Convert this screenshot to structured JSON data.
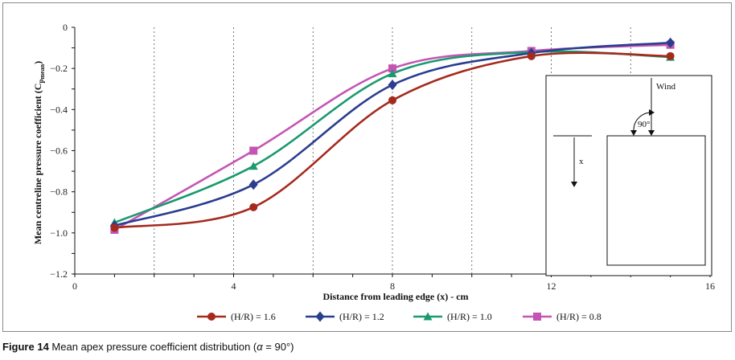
{
  "chart_data": {
    "type": "line",
    "title": "",
    "xlabel": "Distance from leading edge (x) - cm",
    "ylabel": "Mean centreline pressure coefficient (Cp_mean)",
    "ylabel_main": "Mean centreline pressure coefficient (C",
    "ylabel_sub_p": "p",
    "ylabel_sub_mean": "mean",
    "ylabel_close": ")",
    "xlim": [
      0,
      16
    ],
    "ylim": [
      -1.2,
      0
    ],
    "x_ticks": [
      0,
      4,
      8,
      12,
      16
    ],
    "x_tick_labels": [
      "0",
      "4",
      "8",
      "12",
      "16"
    ],
    "y_ticks": [
      0,
      -0.2,
      -0.4,
      -0.6,
      -0.8,
      -1.0,
      -1.2
    ],
    "y_tick_labels": [
      "0",
      "−0.2",
      "−0.4",
      "−0.6",
      "−0.8",
      "−1.0",
      "−1.2"
    ],
    "grid": "vertical dashed",
    "legend_position": "bottom",
    "series": [
      {
        "name": "(H/R) = 1.6",
        "color": "#a52a1e",
        "marker": "circle",
        "x": [
          1,
          4.5,
          8,
          11.5,
          15
        ],
        "values": [
          -0.975,
          -0.875,
          -0.355,
          -0.14,
          -0.14
        ]
      },
      {
        "name": "(H/R) = 1.2",
        "color": "#2a3d8f",
        "marker": "diamond",
        "x": [
          1,
          4.5,
          8,
          11.5,
          15
        ],
        "values": [
          -0.965,
          -0.765,
          -0.28,
          -0.125,
          -0.075
        ]
      },
      {
        "name": "(H/R) = 1.0",
        "color": "#1a9a6e",
        "marker": "triangle",
        "x": [
          1,
          4.5,
          8,
          11.5,
          15
        ],
        "values": [
          -0.95,
          -0.675,
          -0.225,
          -0.12,
          -0.145
        ]
      },
      {
        "name": "(H/R) = 0.8",
        "color": "#c455b4",
        "marker": "square",
        "x": [
          1,
          4.5,
          8,
          11.5,
          15
        ],
        "values": [
          -0.985,
          -0.6,
          -0.2,
          -0.115,
          -0.085
        ]
      }
    ],
    "inset": {
      "wind_label": "Wind",
      "angle_label": "90°",
      "x_label": "x"
    }
  },
  "caption": {
    "label": "Figure 14",
    "text": " Mean apex pressure coefficient distribution (",
    "alpha": "α",
    "text_end": " = 90°)"
  }
}
